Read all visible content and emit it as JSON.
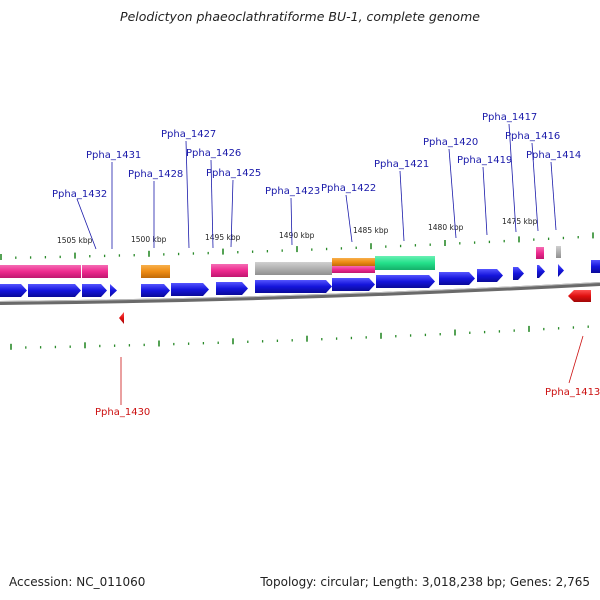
{
  "title": "Pelodictyon phaeoclathratiforme BU-1, complete genome",
  "footer": {
    "accession": "Accession: NC_011060",
    "summary": "Topology: circular; Length: 3,018,238 bp; Genes: 2,765"
  },
  "colors": {
    "forward_cds": "#1515dd",
    "pink_feature": "#ee2a8f",
    "orange_feature": "#ef8c13",
    "gray_feature": "#b0b0b0",
    "green_feature": "#23e08a",
    "reverse_cds": "#e01010",
    "tick": "#2a8a2a",
    "label_blue": "#1a1aaa",
    "label_red": "#cc1111"
  },
  "scale_labels": [
    "1505 kbp",
    "1500 kbp",
    "1495 kbp",
    "1490 kbp",
    "1485 kbp",
    "1480 kbp",
    "1475 kbp"
  ],
  "gene_labels_top": [
    "Ppha_1432",
    "Ppha_1431",
    "Ppha_1428",
    "Ppha_1427",
    "Ppha_1426",
    "Ppha_1425",
    "Ppha_1423",
    "Ppha_1422",
    "Ppha_1421",
    "Ppha_1420",
    "Ppha_1419",
    "Ppha_1417",
    "Ppha_1416",
    "Ppha_1414"
  ],
  "gene_labels_bottom": [
    "Ppha_1430",
    "Ppha_1413"
  ]
}
